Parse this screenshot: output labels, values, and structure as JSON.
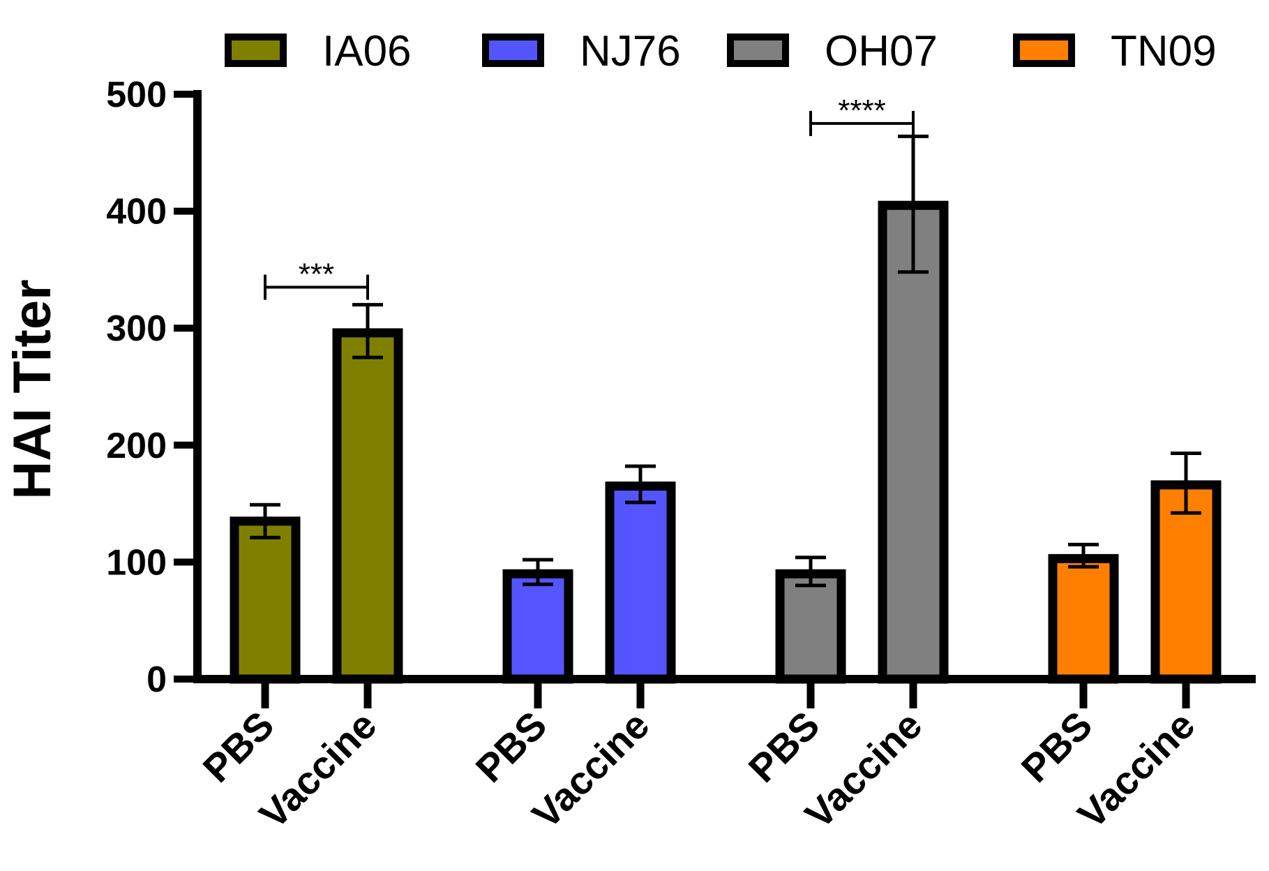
{
  "chart_data": {
    "type": "bar",
    "title": "",
    "xlabel": "",
    "ylabel": "HAI Titer",
    "ylim": [
      0,
      500
    ],
    "yticks": [
      0,
      100,
      200,
      300,
      400,
      500
    ],
    "legend_position": "top",
    "groups": [
      "IA06",
      "NJ76",
      "OH07",
      "TN09"
    ],
    "categories": [
      "PBS",
      "Vaccine"
    ],
    "series": [
      {
        "name": "IA06",
        "color": "#808000",
        "values": [
          135,
          296
        ],
        "errors": [
          {
            "low": 121,
            "high": 149
          },
          {
            "low": 275,
            "high": 320
          }
        ]
      },
      {
        "name": "NJ76",
        "color": "#5555ff",
        "values": [
          90,
          165
        ],
        "errors": [
          {
            "low": 81,
            "high": 102
          },
          {
            "low": 151,
            "high": 182
          }
        ]
      },
      {
        "name": "OH07",
        "color": "#808080",
        "values": [
          90,
          405
        ],
        "errors": [
          {
            "low": 80,
            "high": 104
          },
          {
            "low": 348,
            "high": 464
          }
        ]
      },
      {
        "name": "TN09",
        "color": "#ff8000",
        "values": [
          103,
          166
        ],
        "errors": [
          {
            "low": 96,
            "high": 115
          },
          {
            "low": 142,
            "high": 193
          }
        ]
      }
    ],
    "significance": [
      {
        "group": "IA06",
        "label": "***",
        "y": 335
      },
      {
        "group": "OH07",
        "label": "****",
        "y": 475
      }
    ]
  }
}
